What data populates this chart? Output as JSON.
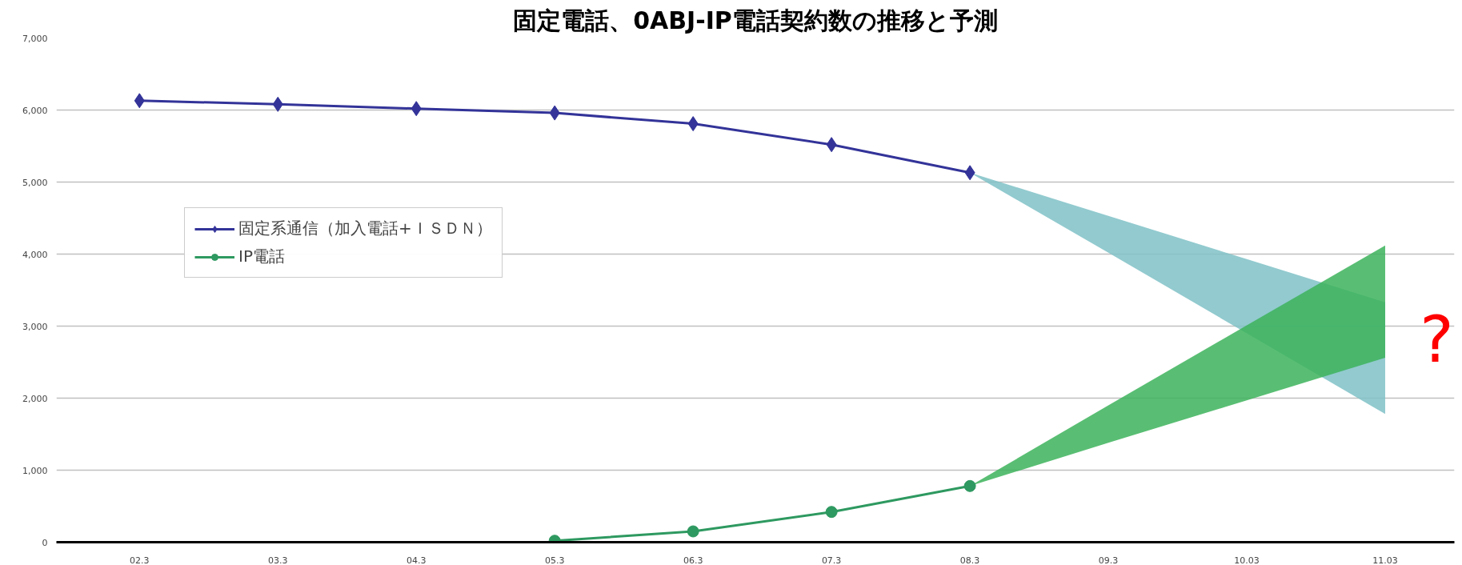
{
  "chart_data": {
    "type": "line",
    "title": "固定電話、0ABJ-IP電話契約数の推移と予測",
    "categories": [
      "02.3",
      "03.3",
      "04.3",
      "05.3",
      "06.3",
      "07.3",
      "08.3",
      "09.3",
      "10.03",
      "11.03"
    ],
    "ylim": [
      0,
      7000
    ],
    "yticks": [
      {
        "value": 0,
        "label": "0"
      },
      {
        "value": 1000,
        "label": "1,000"
      },
      {
        "value": 2000,
        "label": "2,000"
      },
      {
        "value": 3000,
        "label": "3,000"
      },
      {
        "value": 4000,
        "label": "4,000"
      },
      {
        "value": 5000,
        "label": "5,000"
      },
      {
        "value": 6000,
        "label": "6,000"
      },
      {
        "value": 7000,
        "label": "7,000"
      }
    ],
    "grid": "y",
    "legend": "left",
    "series": [
      {
        "type": "area",
        "color": "#7fc1c7",
        "values": [
          null,
          null,
          null,
          null,
          null,
          null,
          null,
          null,
          null,
          null
        ],
        "lower": [
          null,
          null,
          null,
          null,
          null,
          null,
          5130,
          4020,
          2900,
          1780
        ],
        "upper": [
          null,
          null,
          null,
          null,
          null,
          null,
          5130,
          4530,
          3930,
          3330
        ]
      },
      {
        "type": "area",
        "color": "#3cb35a",
        "values": [
          null,
          null,
          null,
          null,
          null,
          null,
          null,
          null,
          null,
          null
        ],
        "lower": [
          null,
          null,
          null,
          null,
          null,
          null,
          780,
          1380,
          1970,
          2560
        ],
        "upper": [
          null,
          null,
          null,
          null,
          null,
          null,
          780,
          1900,
          3010,
          4120
        ]
      },
      {
        "name": "固定系通信（加入電話+ＩＳＤＮ）",
        "color": "#333399",
        "marker": "diamond",
        "values": [
          6130,
          6080,
          6020,
          5960,
          5810,
          5520,
          5130,
          null,
          null,
          null
        ]
      },
      {
        "name": "IP電話",
        "color": "#2e9960",
        "marker": "circle",
        "values": [
          null,
          null,
          null,
          20,
          150,
          420,
          780,
          null,
          null,
          null
        ]
      }
    ],
    "annotations": [
      "?"
    ]
  }
}
